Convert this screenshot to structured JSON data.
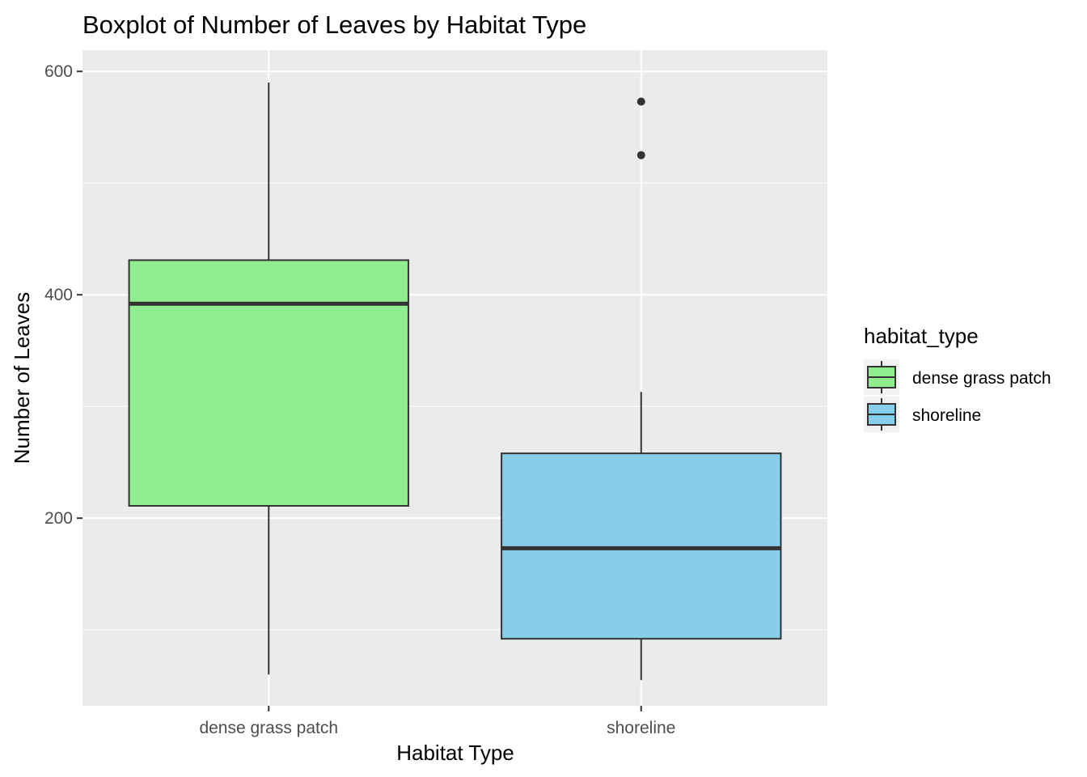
{
  "chart_data": {
    "type": "boxplot",
    "title": "Boxplot of Number of Leaves by Habitat Type",
    "xlabel": "Habitat Type",
    "ylabel": "Number of Leaves",
    "ylim": [
      32,
      619
    ],
    "yticks": [
      200,
      400,
      600
    ],
    "grid": true,
    "legend": {
      "title": "habitat_type",
      "position": "right"
    },
    "categories": [
      "dense grass patch",
      "shoreline"
    ],
    "series": [
      {
        "name": "dense grass patch",
        "color": "#90ee90",
        "whisker_low": 60,
        "q1": 211,
        "median": 392,
        "q3": 431,
        "whisker_high": 590,
        "outliers": []
      },
      {
        "name": "shoreline",
        "color": "#87ceeb",
        "whisker_low": 55,
        "q1": 92,
        "median": 173,
        "q3": 258,
        "whisker_high": 313,
        "outliers": [
          525,
          573
        ]
      }
    ]
  }
}
